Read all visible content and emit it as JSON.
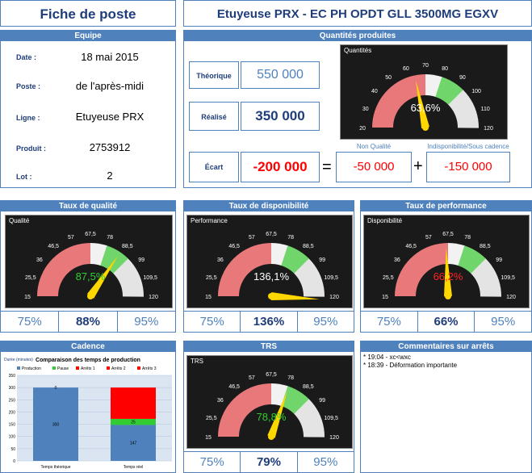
{
  "header": {
    "fiche": "Fiche de poste",
    "machine": "Etuyeuse PRX - EC PH OPDT GLL 3500MG EGXV"
  },
  "equipe": {
    "title": "Equipe",
    "rows": [
      {
        "label": "Date :",
        "value": "18 mai 2015"
      },
      {
        "label": "Poste :",
        "value": "de l'après-midi"
      },
      {
        "label": "Ligne :",
        "value": "Etuyeuse PRX"
      },
      {
        "label": "Produit :",
        "value": "2753912"
      },
      {
        "label": "Lot :",
        "value": "2"
      }
    ]
  },
  "quantites": {
    "title": "Quantités produites",
    "theorique_label": "Théorique",
    "theorique": "550 000",
    "realise_label": "Réalisé",
    "realise": "350 000",
    "ecart_label": "Écart",
    "ecart": "-200 000",
    "equals": "=",
    "plus": "+",
    "non_qualite_label": "Non Qualité",
    "non_qualite": "-50 000",
    "indispo_label": "Indisponibilité/Sous cadence",
    "indispo": "-150 000",
    "gauge": {
      "title": "Quantités",
      "value_text": "63,6%",
      "value": 63.6,
      "ticks": [
        "20",
        "30",
        "40",
        "50",
        "60",
        "70",
        "80",
        "90",
        "100",
        "110",
        "120"
      ],
      "min": 20,
      "max": 120,
      "value_color": "#ffffff"
    }
  },
  "qualite": {
    "title": "Taux de qualité",
    "gauge": {
      "title": "Qualité",
      "value_text": "87,5%",
      "value": 87.5,
      "ticks": [
        "15",
        "25,5",
        "36",
        "46,5",
        "57",
        "67,5",
        "78",
        "88,5",
        "99",
        "109,5",
        "120"
      ],
      "min": 15,
      "max": 120,
      "value_color": "#33cc33"
    },
    "low": "75%",
    "actual": "88%",
    "high": "95%"
  },
  "disponibilite": {
    "title": "Taux de disponibilité",
    "gauge": {
      "title": "Performance",
      "value_text": "136,1%",
      "value": 136.1,
      "ticks": [
        "15",
        "25,5",
        "36",
        "46,5",
        "57",
        "67,5",
        "78",
        "88,5",
        "99",
        "109,5",
        "120"
      ],
      "min": 15,
      "max": 120,
      "value_color": "#ffffff"
    },
    "low": "75%",
    "actual": "136%",
    "high": "95%"
  },
  "performance": {
    "title": "Taux  de performance",
    "gauge": {
      "title": "Disponibilité",
      "value_text": "66,2%",
      "value": 66.2,
      "ticks": [
        "15",
        "25,5",
        "36",
        "46,5",
        "57",
        "67,5",
        "78",
        "88,5",
        "99",
        "109,5",
        "120"
      ],
      "min": 15,
      "max": 120,
      "value_color": "#ff2222"
    },
    "low": "75%",
    "actual": "66%",
    "high": "95%"
  },
  "cadence": {
    "title": "Cadence",
    "chart_title": "Comparaison des temps de production",
    "duree_label": "Durée (minutes)",
    "legend": [
      {
        "name": "Production",
        "color": "#4f81bd"
      },
      {
        "name": "Pause",
        "color": "#33cc33"
      },
      {
        "name": "Arrêts 1",
        "color": "#ff0000"
      },
      {
        "name": "Arrêts 2",
        "color": "#ff0000"
      },
      {
        "name": "Arrêts 3",
        "color": "#ff0000"
      }
    ]
  },
  "chart_data": {
    "type": "bar",
    "title": "Comparaison des temps de production",
    "ylabel": "Durée (minutes)",
    "categories": [
      "Temps théorique",
      "Temps réel"
    ],
    "ylim": [
      0,
      350
    ],
    "yticks": [
      "0",
      "50",
      "100",
      "150",
      "200",
      "250",
      "300",
      "350"
    ],
    "series": [
      {
        "name": "Production",
        "values": [
          300,
          147
        ],
        "labels": [
          "300",
          "147"
        ]
      },
      {
        "name": "Pause",
        "values": [
          0,
          25
        ],
        "labels": [
          "0",
          "25"
        ]
      },
      {
        "name": "Arrêts 1",
        "values": [
          0,
          128
        ],
        "labels": [
          "",
          ""
        ]
      }
    ]
  },
  "trs": {
    "title": "TRS",
    "gauge": {
      "title": "TRS",
      "value_text": "78,8%",
      "value": 78.8,
      "ticks": [
        "15",
        "25,5",
        "36",
        "46,5",
        "57",
        "67,5",
        "78",
        "88,5",
        "99",
        "109,5",
        "120"
      ],
      "min": 15,
      "max": 120,
      "value_color": "#33cc33"
    },
    "low": "75%",
    "actual": "79%",
    "high": "95%"
  },
  "commentaires": {
    "title": "Commentaires sur arrêts",
    "items": [
      "* 19:04 - xc<wxc",
      "* 18:39 - Déformation importante"
    ]
  }
}
